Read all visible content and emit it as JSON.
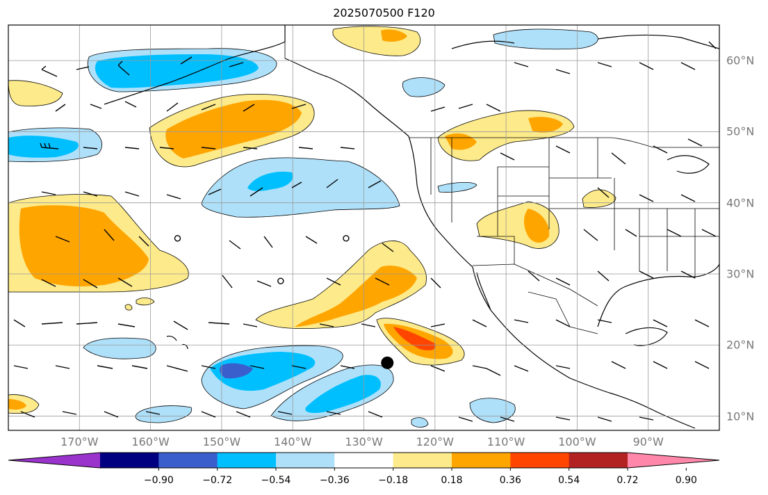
{
  "title": "2025070500 F120",
  "map": {
    "projection": "equirectangular",
    "lon_range": [
      -180,
      -80
    ],
    "lat_range": [
      8,
      65
    ],
    "lon_labels": [
      "170°W",
      "160°W",
      "150°W",
      "140°W",
      "130°W",
      "120°W",
      "110°W",
      "100°W",
      "90°W"
    ],
    "lon_values": [
      -170,
      -160,
      -150,
      -140,
      -130,
      -120,
      -110,
      -100,
      -90
    ],
    "lat_labels": [
      "60°N",
      "50°N",
      "40°N",
      "30°N",
      "20°N",
      "10°N"
    ],
    "lat_values": [
      60,
      50,
      40,
      30,
      20,
      10
    ],
    "grid": true,
    "storm_marker": {
      "lon": -126.7,
      "lat": 17.5,
      "icon": "filled-circle-icon"
    },
    "calm_markers": [
      {
        "lon": -156.2,
        "lat": 35.0
      },
      {
        "lon": -141.7,
        "lat": 29.0
      },
      {
        "lon": -132.5,
        "lat": 35.0
      }
    ]
  },
  "colorbar": {
    "labels": [
      "−0.90",
      "−0.72",
      "−0.54",
      "−0.36",
      "−0.18",
      "0.18",
      "0.36",
      "0.54",
      "0.72",
      "0.90"
    ],
    "colors": [
      "#9933cc",
      "#000080",
      "#3a5fcd",
      "#00bfff",
      "#aee0fa",
      "#ffffff",
      "#fdea8a",
      "#ffa500",
      "#ff4500",
      "#b22222",
      "#ff88aa"
    ],
    "extend": "both"
  }
}
